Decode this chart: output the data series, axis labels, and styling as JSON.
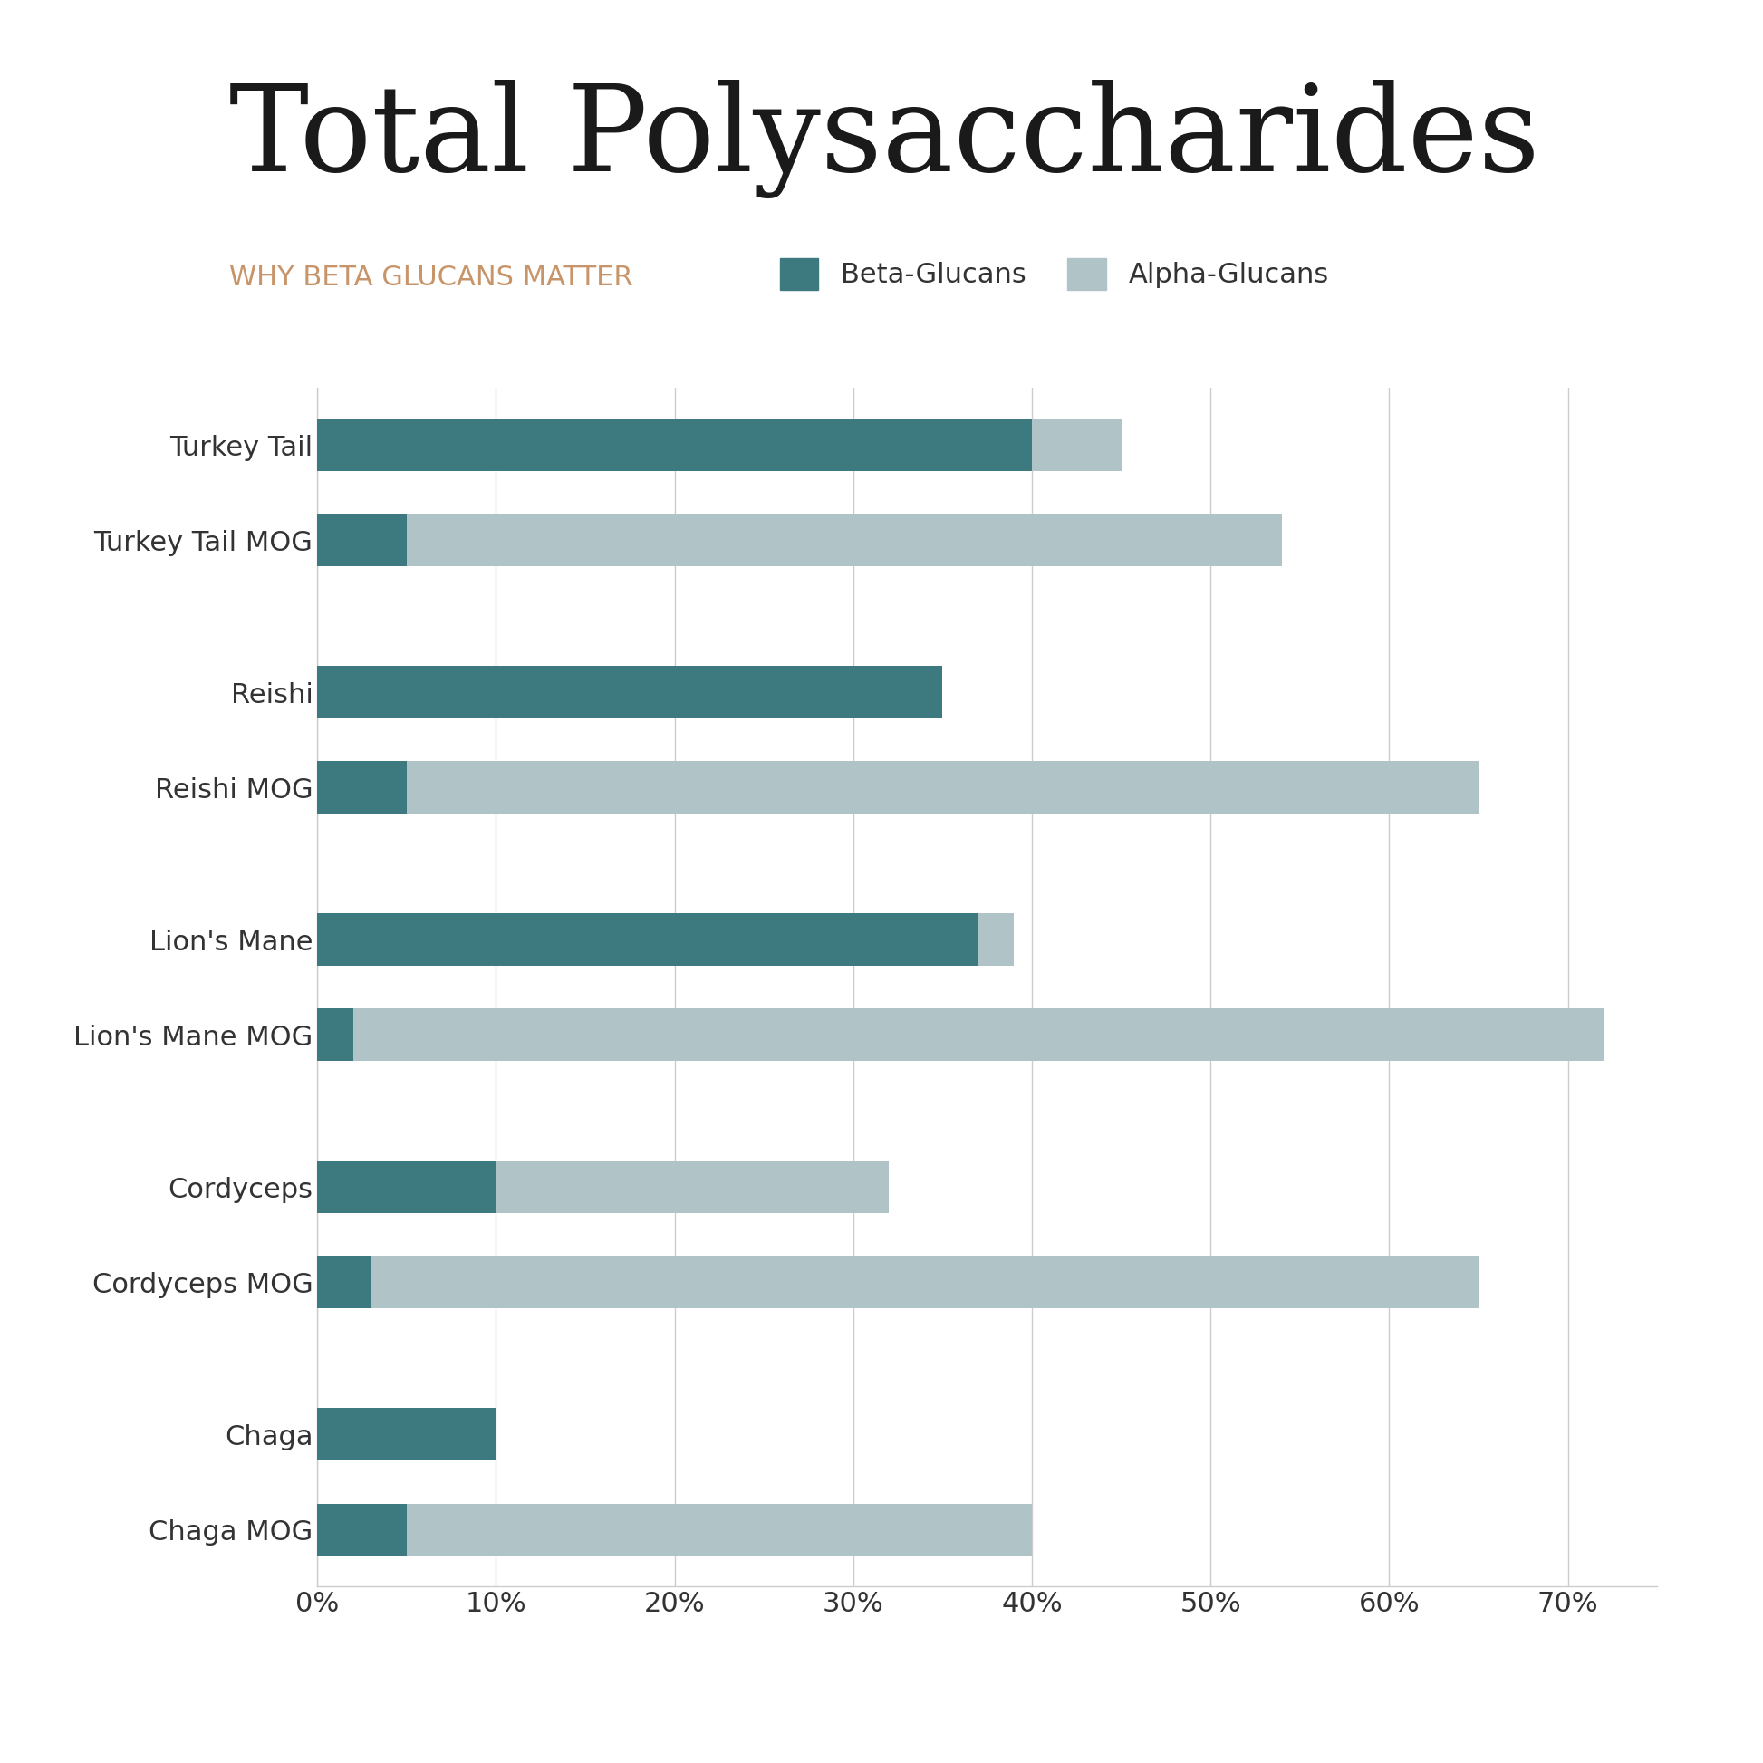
{
  "subtitle": "WHY BETA GLUCANS MATTER",
  "title": "Total Polysaccharides",
  "subtitle_color": "#c8956a",
  "title_color": "#1a1a1a",
  "background_color": "#ffffff",
  "beta_color": "#3d7a80",
  "alpha_color": "#b0c4c8",
  "legend_labels": [
    "Beta-Glucans",
    "Alpha-Glucans"
  ],
  "categories": [
    "Chaga",
    "Chaga MOG",
    "Cordyceps",
    "Cordyceps MOG",
    "Lion's Mane",
    "Lion's Mane MOG",
    "Reishi",
    "Reishi MOG",
    "Turkey Tail",
    "Turkey Tail MOG"
  ],
  "beta_values": [
    10,
    5,
    10,
    3,
    37,
    2,
    35,
    5,
    40,
    5
  ],
  "alpha_values": [
    0,
    35,
    22,
    62,
    2,
    70,
    0,
    60,
    5,
    49
  ],
  "xlim": [
    0,
    75
  ],
  "xticks": [
    0,
    10,
    20,
    30,
    40,
    50,
    60,
    70
  ],
  "xticklabels": [
    "0%",
    "10%",
    "20%",
    "30%",
    "40%",
    "50%",
    "60%",
    "70%"
  ],
  "grid_color": "#cccccc",
  "tick_color": "#333333",
  "label_color": "#333333",
  "bar_height": 0.55
}
